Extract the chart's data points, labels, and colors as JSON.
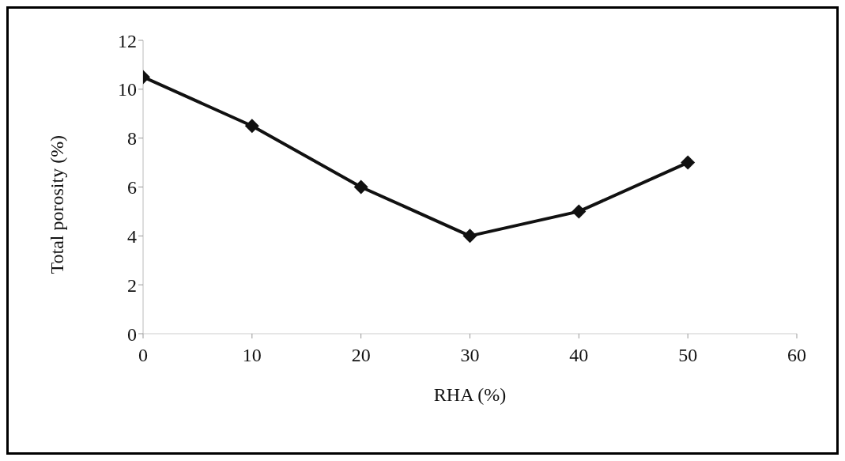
{
  "chart_data": {
    "type": "line",
    "xlabel": "RHA (%)",
    "ylabel": "Total porosity (%)",
    "x": [
      0,
      10,
      20,
      30,
      40,
      50
    ],
    "series": [
      {
        "color": "#111111",
        "values": [
          10.5,
          8.5,
          6,
          4,
          5,
          7
        ]
      }
    ],
    "xlim": [
      0,
      60
    ],
    "xticks": [
      0,
      10,
      20,
      30,
      40,
      50,
      60
    ],
    "ylim": [
      0,
      12
    ],
    "yticks": [
      0,
      2,
      4,
      6,
      8,
      10,
      12
    ],
    "grid": false,
    "legend": false,
    "marker": "diamond",
    "line_style": "solid"
  }
}
